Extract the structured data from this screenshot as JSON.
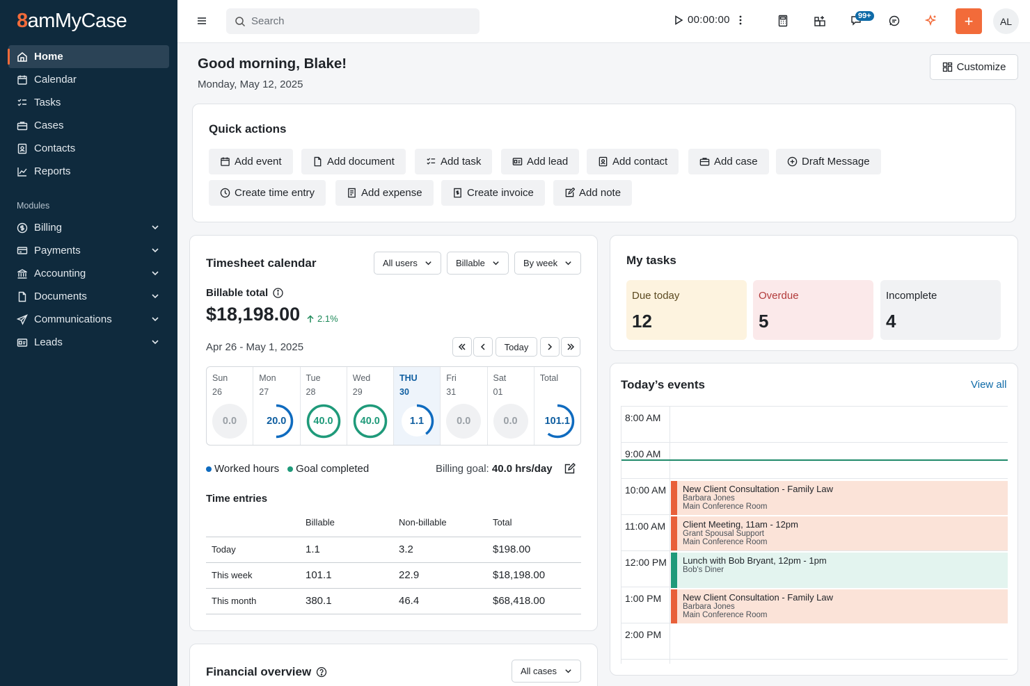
{
  "brand": {
    "logo_8": "8",
    "logo_rest": "amMyCase"
  },
  "sidebar": {
    "items": [
      {
        "label": "Home"
      },
      {
        "label": "Calendar"
      },
      {
        "label": "Tasks"
      },
      {
        "label": "Cases"
      },
      {
        "label": "Contacts"
      },
      {
        "label": "Reports"
      }
    ],
    "modules_label": "Modules",
    "modules": [
      {
        "label": "Billing"
      },
      {
        "label": "Payments"
      },
      {
        "label": "Accounting"
      },
      {
        "label": "Documents"
      },
      {
        "label": "Communications"
      },
      {
        "label": "Leads"
      }
    ]
  },
  "topbar": {
    "search_placeholder": "Search",
    "timer": "00:00:00",
    "notification_badge": "99+",
    "plus_label": "+",
    "avatar_initials": "AL"
  },
  "header": {
    "greeting": "Good morning, Blake!",
    "date": "Monday, May 12, 2025",
    "customize_label": "Customize"
  },
  "quick_actions": {
    "title": "Quick actions",
    "row1": [
      "Add event",
      "Add document",
      "Add task",
      "Add lead",
      "Add contact",
      "Add case",
      "Draft Message"
    ],
    "row2": [
      "Create time entry",
      "Add expense",
      "Create invoice",
      "Add note"
    ]
  },
  "timesheet": {
    "title": "Timesheet calendar",
    "filters": [
      "All users",
      "Billable",
      "By week"
    ],
    "billable_label": "Billable total",
    "billable_total": "$18,198.00",
    "delta": "2.1%",
    "range": "Apr 26 - May 1, 2025",
    "today_label": "Today",
    "days": [
      {
        "name": "Sun",
        "date": "26",
        "value": "0.0",
        "progress": 0,
        "kind": "empty"
      },
      {
        "name": "Mon",
        "date": "27",
        "value": "20.0",
        "progress": 0.5,
        "kind": "worked"
      },
      {
        "name": "Tue",
        "date": "28",
        "value": "40.0",
        "progress": 1.0,
        "kind": "goal"
      },
      {
        "name": "Wed",
        "date": "29",
        "value": "40.0",
        "progress": 1.0,
        "kind": "goal"
      },
      {
        "name": "THU",
        "date": "30",
        "value": "1.1",
        "progress": 0.4,
        "kind": "worked"
      },
      {
        "name": "Fri",
        "date": "31",
        "value": "0.0",
        "progress": 0,
        "kind": "empty"
      },
      {
        "name": "Sat",
        "date": "01",
        "value": "0.0",
        "progress": 0,
        "kind": "empty"
      },
      {
        "name": "Total",
        "date": "",
        "value": "101.1",
        "progress": 0.6,
        "kind": "worked"
      }
    ],
    "legend_worked": "Worked hours",
    "legend_goal": "Goal completed",
    "goal_label": "Billing goal:",
    "goal_value": "40.0 hrs/day",
    "entries_title": "Time entries",
    "columns": [
      "",
      "Billable",
      "Non-billable",
      "Total"
    ],
    "rows": [
      [
        "Today",
        "1.1",
        "3.2",
        "$198.00"
      ],
      [
        "This week",
        "101.1",
        "22.9",
        "$18,198.00"
      ],
      [
        "This month",
        "380.1",
        "46.4",
        "$68,418.00"
      ]
    ],
    "colors": {
      "worked": "#0f6bbf",
      "goal": "#1f9a7a",
      "empty": "#f0f1f3"
    }
  },
  "financial": {
    "title": "Financial overview",
    "filter": "All cases"
  },
  "my_tasks": {
    "title": "My tasks",
    "boxes": [
      {
        "label": "Due today",
        "value": "12",
        "bg": "#fdf3df",
        "color": "#5b4a20"
      },
      {
        "label": "Overdue",
        "value": "5",
        "bg": "#fbe9ea",
        "color": "#b23a3a"
      },
      {
        "label": "Incomplete",
        "value": "4",
        "bg": "#f1f2f4",
        "color": "#1f2328"
      }
    ]
  },
  "events": {
    "title": "Today’s events",
    "view_all": "View all",
    "hours": [
      "8:00 AM",
      "9:00 AM",
      "10:00 AM",
      "11:00 AM",
      "12:00 PM",
      "1:00 PM",
      "2:00 PM"
    ],
    "items": [
      {
        "title": "New Client Consultation - Family Law",
        "line2": "Barbara Jones",
        "line3": "Main Conference Room",
        "border": "#e8603a",
        "bg": "#fbe3d8"
      },
      {
        "title": "Client Meeting, 11am - 12pm",
        "line2": "Grant Spousal Support",
        "line3": "Main Conference Room",
        "border": "#e8603a",
        "bg": "#fbe3d8"
      },
      {
        "title": "Lunch with Bob Bryant, 12pm - 1pm",
        "line2": "Bob's Diner",
        "line3": "",
        "border": "#1f9a7a",
        "bg": "#e3f4ef"
      },
      {
        "title": "New Client Consultation - Family Law",
        "line2": "Barbara Jones",
        "line3": "Main Conference Room",
        "border": "#e8603a",
        "bg": "#fbe3d8"
      }
    ]
  }
}
